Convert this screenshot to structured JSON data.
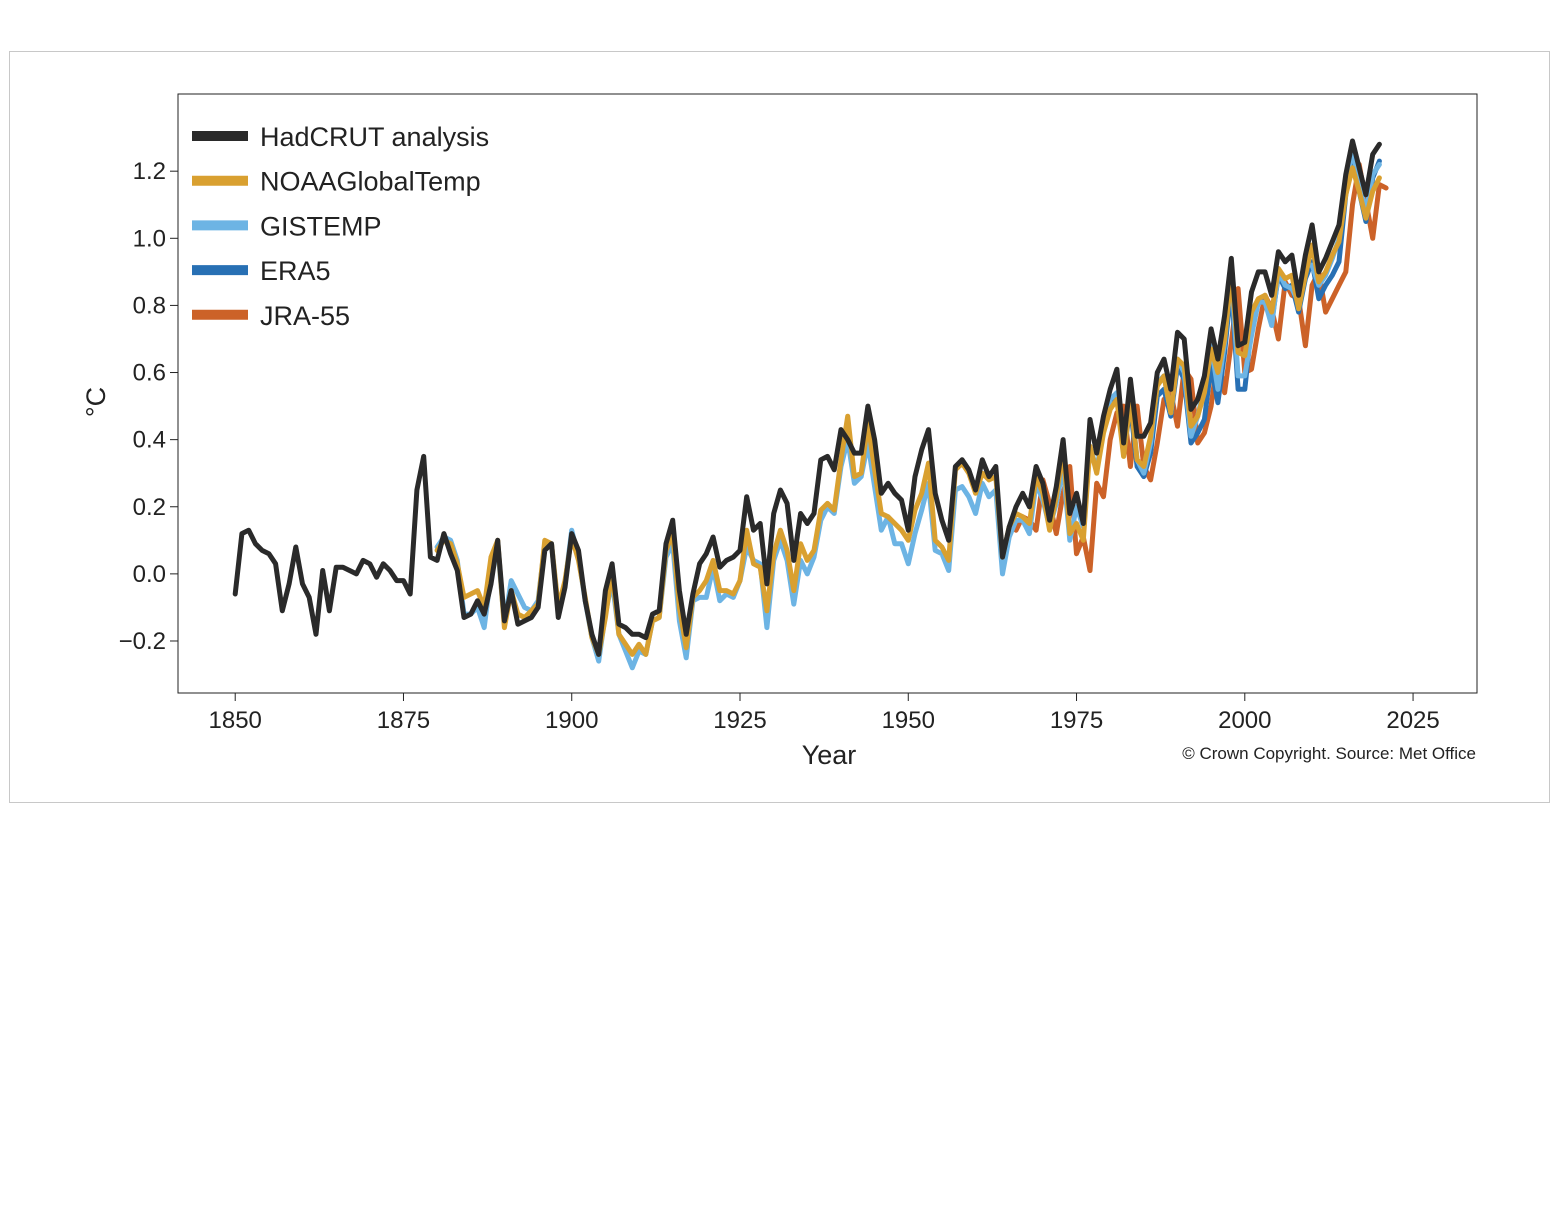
{
  "chart_data": {
    "type": "line",
    "title": "",
    "xlabel": "Year",
    "ylabel": "°C",
    "xlim": [
      1841.5,
      2034.5
    ],
    "ylim": [
      -0.355,
      1.43
    ],
    "xticks": [
      1850,
      1875,
      1900,
      1925,
      1950,
      1975,
      2000,
      2025
    ],
    "xtick_labels": [
      "1850",
      "1875",
      "1900",
      "1925",
      "1950",
      "1975",
      "2000",
      "2025"
    ],
    "yticks": [
      -0.2,
      0.0,
      0.2,
      0.4,
      0.6,
      0.8,
      1.0,
      1.2
    ],
    "ytick_labels": [
      "−0.2",
      "0.0",
      "0.2",
      "0.4",
      "0.6",
      "0.8",
      "1.0",
      "1.2"
    ],
    "grid": false,
    "legend_position": "top-left",
    "credit": "© Crown Copyright. Source: Met Office",
    "series": [
      {
        "name": "HadCRUT analysis",
        "color": "#2a2a2a",
        "x_start": 1850,
        "values": [
          -0.06,
          0.12,
          0.13,
          0.09,
          0.07,
          0.06,
          0.03,
          -0.11,
          -0.03,
          0.08,
          -0.03,
          -0.07,
          -0.18,
          0.01,
          -0.11,
          0.02,
          0.02,
          0.01,
          0.0,
          0.04,
          0.03,
          -0.01,
          0.03,
          0.01,
          -0.02,
          -0.02,
          -0.06,
          0.25,
          0.35,
          0.05,
          0.04,
          0.12,
          0.06,
          0.01,
          -0.13,
          -0.12,
          -0.08,
          -0.12,
          -0.03,
          0.1,
          -0.14,
          -0.05,
          -0.15,
          -0.14,
          -0.13,
          -0.1,
          0.07,
          0.09,
          -0.13,
          -0.04,
          0.12,
          0.07,
          -0.08,
          -0.18,
          -0.24,
          -0.05,
          0.03,
          -0.15,
          -0.16,
          -0.18,
          -0.18,
          -0.19,
          -0.12,
          -0.11,
          0.09,
          0.16,
          -0.05,
          -0.18,
          -0.06,
          0.03,
          0.06,
          0.11,
          0.02,
          0.04,
          0.05,
          0.07,
          0.23,
          0.13,
          0.15,
          -0.03,
          0.18,
          0.25,
          0.21,
          0.04,
          0.18,
          0.15,
          0.18,
          0.34,
          0.35,
          0.31,
          0.43,
          0.4,
          0.36,
          0.36,
          0.5,
          0.4,
          0.24,
          0.27,
          0.24,
          0.22,
          0.13,
          0.29,
          0.37,
          0.43,
          0.24,
          0.16,
          0.1,
          0.32,
          0.34,
          0.31,
          0.25,
          0.34,
          0.29,
          0.32,
          0.05,
          0.14,
          0.2,
          0.24,
          0.2,
          0.32,
          0.27,
          0.16,
          0.26,
          0.4,
          0.18,
          0.24,
          0.15,
          0.46,
          0.36,
          0.47,
          0.55,
          0.61,
          0.39,
          0.58,
          0.41,
          0.41,
          0.45,
          0.6,
          0.64,
          0.55,
          0.72,
          0.7,
          0.49,
          0.52,
          0.59,
          0.73,
          0.64,
          0.77,
          0.94,
          0.68,
          0.69,
          0.84,
          0.9,
          0.9,
          0.83,
          0.96,
          0.93,
          0.95,
          0.83,
          0.95,
          1.04,
          0.9,
          0.94,
          0.99,
          1.04,
          1.19,
          1.29,
          1.21,
          1.13,
          1.25,
          1.28
        ]
      },
      {
        "name": "NOAAGlobalTemp",
        "color": "#d9a030",
        "x_start": 1880,
        "values": [
          0.07,
          0.1,
          0.09,
          0.03,
          -0.07,
          -0.06,
          -0.05,
          -0.1,
          0.05,
          0.1,
          -0.16,
          -0.05,
          -0.12,
          -0.13,
          -0.11,
          -0.09,
          0.1,
          0.09,
          -0.1,
          -0.02,
          0.11,
          0.04,
          -0.07,
          -0.19,
          -0.24,
          -0.13,
          0.01,
          -0.18,
          -0.21,
          -0.24,
          -0.21,
          -0.24,
          -0.14,
          -0.13,
          0.07,
          0.12,
          -0.1,
          -0.22,
          -0.07,
          -0.05,
          -0.02,
          0.04,
          -0.05,
          -0.05,
          -0.06,
          -0.02,
          0.13,
          0.03,
          0.02,
          -0.11,
          0.06,
          0.13,
          0.07,
          -0.05,
          0.09,
          0.04,
          0.07,
          0.19,
          0.21,
          0.19,
          0.34,
          0.47,
          0.29,
          0.3,
          0.45,
          0.31,
          0.18,
          0.17,
          0.15,
          0.13,
          0.1,
          0.19,
          0.24,
          0.33,
          0.1,
          0.08,
          0.04,
          0.31,
          0.33,
          0.3,
          0.24,
          0.3,
          0.28,
          0.29,
          0.05,
          0.14,
          0.18,
          0.17,
          0.15,
          0.29,
          0.24,
          0.13,
          0.23,
          0.37,
          0.12,
          0.15,
          0.1,
          0.38,
          0.3,
          0.42,
          0.49,
          0.52,
          0.35,
          0.52,
          0.34,
          0.32,
          0.41,
          0.56,
          0.59,
          0.48,
          0.64,
          0.62,
          0.44,
          0.47,
          0.54,
          0.67,
          0.6,
          0.7,
          0.89,
          0.66,
          0.65,
          0.78,
          0.82,
          0.83,
          0.78,
          0.91,
          0.88,
          0.89,
          0.79,
          0.89,
          0.98,
          0.87,
          0.9,
          0.95,
          0.99,
          1.13,
          1.21,
          1.14,
          1.06,
          1.14,
          1.18
        ]
      },
      {
        "name": "GISTEMP",
        "color": "#6db4e4",
        "x_start": 1880,
        "values": [
          0.08,
          0.11,
          0.1,
          0.04,
          -0.12,
          -0.12,
          -0.1,
          -0.16,
          0.0,
          0.08,
          -0.15,
          -0.02,
          -0.06,
          -0.1,
          -0.11,
          -0.08,
          0.09,
          0.09,
          -0.11,
          -0.03,
          0.13,
          0.05,
          -0.08,
          -0.19,
          -0.26,
          -0.12,
          -0.02,
          -0.18,
          -0.23,
          -0.28,
          -0.23,
          -0.24,
          -0.14,
          -0.13,
          0.05,
          0.09,
          -0.14,
          -0.25,
          -0.08,
          -0.07,
          -0.07,
          0.02,
          -0.08,
          -0.06,
          -0.07,
          -0.02,
          0.08,
          0.04,
          0.03,
          -0.16,
          0.04,
          0.1,
          0.04,
          -0.09,
          0.04,
          0.0,
          0.05,
          0.16,
          0.2,
          0.18,
          0.32,
          0.4,
          0.27,
          0.29,
          0.39,
          0.26,
          0.13,
          0.17,
          0.09,
          0.09,
          0.03,
          0.12,
          0.19,
          0.27,
          0.07,
          0.06,
          0.01,
          0.25,
          0.26,
          0.23,
          0.18,
          0.27,
          0.23,
          0.25,
          0.0,
          0.11,
          0.16,
          0.16,
          0.12,
          0.27,
          0.22,
          0.14,
          0.21,
          0.32,
          0.1,
          0.2,
          0.14,
          0.38,
          0.31,
          0.43,
          0.52,
          0.54,
          0.36,
          0.54,
          0.34,
          0.3,
          0.39,
          0.57,
          0.59,
          0.48,
          0.64,
          0.6,
          0.41,
          0.47,
          0.56,
          0.68,
          0.55,
          0.69,
          0.89,
          0.59,
          0.59,
          0.71,
          0.81,
          0.81,
          0.74,
          0.9,
          0.86,
          0.85,
          0.81,
          0.92,
          0.92,
          0.86,
          0.89,
          0.94,
          1.0,
          1.17,
          1.26,
          1.16,
          1.08,
          1.19,
          1.22
        ]
      },
      {
        "name": "ERA5",
        "color": "#2870b4",
        "x_start": 1979,
        "values": [
          0.44,
          0.51,
          0.53,
          0.36,
          0.5,
          0.32,
          0.29,
          0.36,
          0.53,
          0.55,
          0.47,
          0.62,
          0.58,
          0.39,
          0.42,
          0.46,
          0.62,
          0.51,
          0.66,
          0.86,
          0.55,
          0.55,
          0.74,
          0.81,
          0.81,
          0.75,
          0.89,
          0.85,
          0.86,
          0.78,
          0.88,
          0.93,
          0.82,
          0.86,
          0.89,
          0.93,
          1.13,
          1.23,
          1.14,
          1.05,
          1.18,
          1.23
        ]
      },
      {
        "name": "JRA-55",
        "color": "#cc6228",
        "x_start": 1966,
        "values": [
          0.13,
          0.17,
          0.16,
          0.13,
          0.28,
          0.21,
          0.12,
          0.24,
          0.32,
          0.06,
          0.11,
          0.01,
          0.27,
          0.23,
          0.4,
          0.48,
          0.5,
          0.32,
          0.5,
          0.32,
          0.28,
          0.39,
          0.52,
          0.54,
          0.44,
          0.61,
          0.58,
          0.39,
          0.42,
          0.5,
          0.65,
          0.54,
          0.69,
          0.85,
          0.6,
          0.61,
          0.73,
          0.83,
          0.79,
          0.7,
          0.87,
          0.83,
          0.82,
          0.68,
          0.86,
          0.9,
          0.78,
          0.82,
          0.86,
          0.9,
          1.1,
          1.22,
          1.11,
          1.0,
          1.16,
          1.15
        ]
      }
    ]
  }
}
